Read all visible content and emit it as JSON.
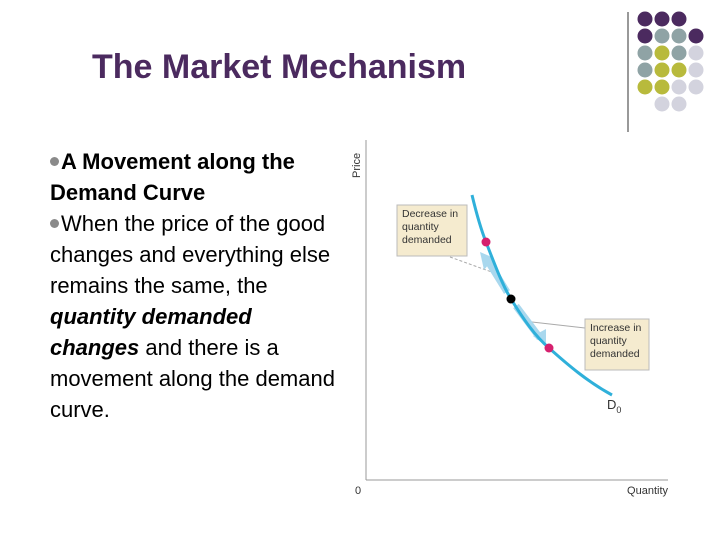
{
  "slide": {
    "title": "The Market Mechanism",
    "bullets": [
      {
        "segments": [
          {
            "text": "A Movement along the Demand Curve",
            "style": "bold"
          }
        ]
      },
      {
        "segments": [
          {
            "text": "When the price of the good changes and everything else remains the same, the ",
            "style": "normal"
          },
          {
            "text": "quantity demanded changes",
            "style": "bold-italic"
          },
          {
            "text": " and there is a movement along the demand curve.",
            "style": "normal"
          }
        ]
      }
    ],
    "diagram": {
      "y_axis_label": "Price",
      "x_axis_label": "Quantity",
      "origin_label": "0",
      "curve_label": {
        "letter": "D",
        "subscript": "0"
      },
      "annotations": [
        {
          "lines": [
            "Decrease in",
            "quantity",
            "demanded"
          ]
        },
        {
          "lines": [
            "Increase in",
            "quantity",
            "demanded"
          ]
        }
      ]
    }
  }
}
